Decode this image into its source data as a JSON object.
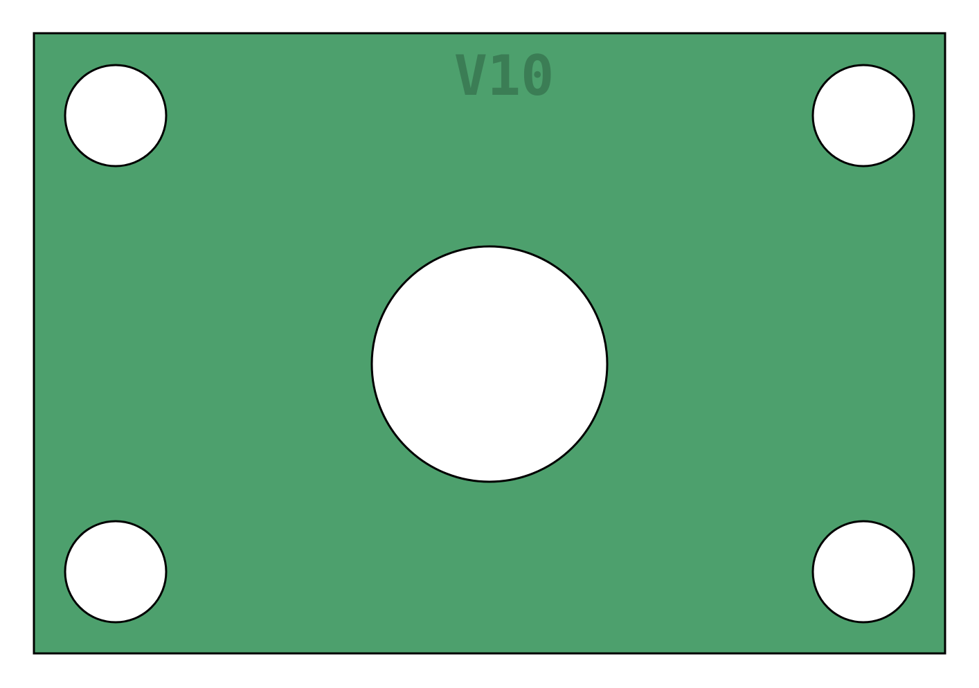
{
  "plate": {
    "label": "V10",
    "fill_color": "#4da06d",
    "label_color": "#3b7d55",
    "outline_color": "#000000",
    "hole_color": "#ffffff"
  },
  "holes": [
    {
      "id": "top-left"
    },
    {
      "id": "top-right"
    },
    {
      "id": "center"
    },
    {
      "id": "bottom-left"
    },
    {
      "id": "bottom-right"
    }
  ]
}
